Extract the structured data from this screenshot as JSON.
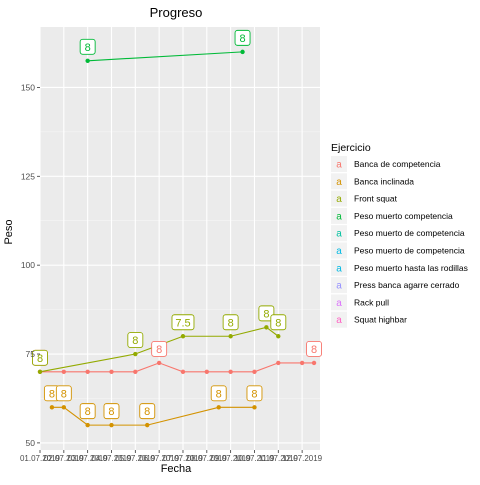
{
  "chart_data": {
    "type": "line",
    "title": "Progreso",
    "xlabel": "Fecha",
    "ylabel": "Peso",
    "ylim": [
      48,
      167
    ],
    "yticks": [
      50,
      75,
      100,
      125,
      150
    ],
    "xlim": [
      1,
      12.75
    ],
    "x_tick_labels": [
      "01.07.2019",
      "02.07.2019",
      "03.07.2019",
      "04.07.2019",
      "05.07.2019",
      "06.07.2019",
      "07.07.2019",
      "08.07.2019",
      "09.07.2019",
      "10.07.2019",
      "11.07.2019",
      "12.07.2019"
    ],
    "x_tick_positions": [
      1,
      2,
      3,
      4,
      5,
      6,
      7,
      8,
      9,
      10,
      11,
      12
    ],
    "grid": true,
    "legend": {
      "title": "Ejercicio",
      "placement": "right",
      "marker": "a"
    },
    "series": [
      {
        "name": "Banca de competencia",
        "color": "#F8766D",
        "x": [
          1,
          2,
          3,
          4,
          5,
          6,
          7,
          8,
          9,
          10,
          11,
          12,
          12.5
        ],
        "y": [
          70,
          70,
          70,
          70,
          70,
          72.5,
          70,
          70,
          70,
          70,
          72.5,
          72.5,
          72.5
        ],
        "labels": [
          "8",
          "8",
          "8",
          "8",
          "8",
          "8",
          "8",
          "8",
          "8",
          "8",
          "8",
          "8",
          "8"
        ],
        "label_shown": [
          true,
          false,
          false,
          false,
          false,
          true,
          false,
          false,
          false,
          false,
          false,
          false,
          true
        ],
        "show_labels": "partial"
      },
      {
        "name": "Banca inclinada",
        "color": "#D39200",
        "x": [
          1.5,
          2,
          3,
          4,
          5.5,
          8.5,
          10
        ],
        "y": [
          60,
          60,
          55,
          55,
          55,
          60,
          60
        ],
        "labels": [
          "8",
          "8",
          "8",
          "8",
          "8",
          "8",
          "8"
        ]
      },
      {
        "name": "Front squat",
        "color": "#93AA00",
        "x": [
          1,
          5,
          7,
          9,
          10.5,
          11
        ],
        "y": [
          70,
          75,
          80,
          80,
          82.5,
          80
        ],
        "labels": [
          "8",
          "8",
          "7.5",
          "8",
          "8",
          "8"
        ]
      },
      {
        "name": "Peso muerto competencia",
        "color": "#00BA38",
        "x": [
          3,
          9.5
        ],
        "y": [
          157.5,
          160
        ],
        "labels": [
          "8",
          "8"
        ]
      }
    ]
  },
  "legend_items": [
    {
      "label": "Banca de competencia",
      "color": "#F8766D"
    },
    {
      "label": "Banca inclinada",
      "color": "#D39200"
    },
    {
      "label": "Front squat",
      "color": "#93AA00"
    },
    {
      "label": "Peso muerto competencia",
      "color": "#00BA38"
    },
    {
      "label": "Peso muerto de competencia",
      "color": "#00C19F"
    },
    {
      "label": "Peso muerto de competencia",
      "color": "#00B9E3"
    },
    {
      "label": "Peso muerto hasta las rodillas",
      "color": "#00B9E3"
    },
    {
      "label": "Press banca agarre cerrado",
      "color": "#9590FF"
    },
    {
      "label": "Rack pull",
      "color": "#DB72FB"
    },
    {
      "label": "Squat highbar",
      "color": "#FF61C3"
    }
  ]
}
